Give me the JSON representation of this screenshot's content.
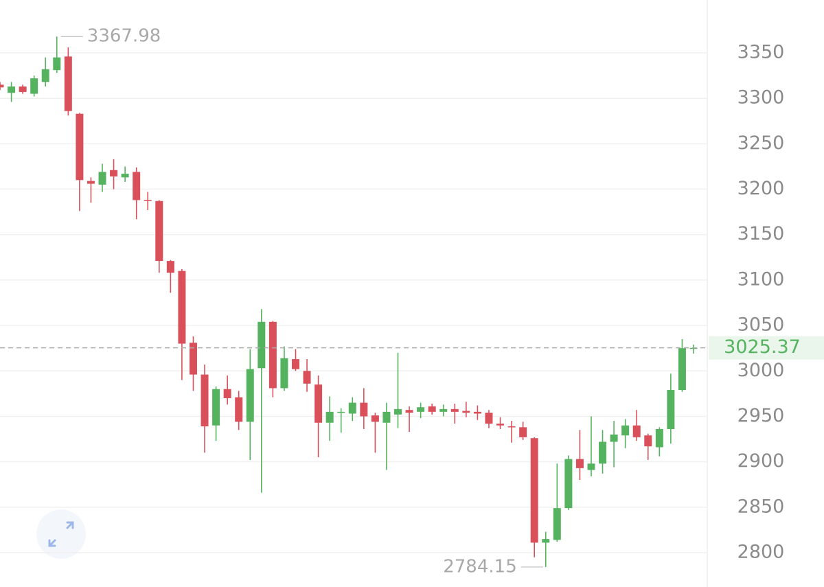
{
  "chart_data": {
    "type": "candlestick",
    "open": [
      3315,
      3306,
      3313,
      3305,
      3318,
      3331,
      3346,
      3283,
      3209,
      3205,
      3221,
      3213,
      3219,
      3188,
      3187,
      3121,
      3110,
      3031,
      2996,
      2940,
      2980,
      2971,
      2944,
      3003,
      3054,
      2981,
      3013,
      3000,
      2985,
      2943,
      2954,
      2953,
      2965,
      2951,
      2943,
      2952,
      2957,
      2955,
      2961,
      2955,
      2958,
      2956,
      2955,
      2954,
      2942,
      2939,
      2938,
      2926,
      2811,
      2814,
      2849,
      2903,
      2891,
      2898,
      2922,
      2929,
      2940,
      2929,
      2916,
      2936,
      2979,
      3025
    ],
    "high": [
      3318,
      3318,
      3315,
      3325,
      3345,
      3367.98,
      3356,
      3284,
      3213,
      3228,
      3233,
      3225,
      3224,
      3197,
      3188,
      3122,
      3112,
      3038,
      3007,
      2983,
      2995,
      2978,
      3024,
      3068,
      3055,
      3027,
      3024,
      3013,
      2995,
      2972,
      2959,
      2971,
      2981,
      2954,
      2965,
      3020,
      2961,
      2965,
      2964,
      2963,
      2964,
      2966,
      2962,
      2957,
      2949,
      2945,
      2944,
      2927,
      2823,
      2898,
      2907,
      2935,
      2950,
      2935,
      2945,
      2947,
      2957,
      2931,
      2938,
      2997,
      3035,
      3029
    ],
    "low": [
      3309,
      3296,
      3305,
      3302,
      3313,
      3328,
      3281,
      3176,
      3185,
      3197,
      3200,
      3208,
      3167,
      3177,
      3108,
      3086,
      2990,
      2978,
      2910,
      2923,
      2963,
      2935,
      2902,
      2866,
      2971,
      2978,
      3000,
      2977,
      2905,
      2923,
      2932,
      2945,
      2936,
      2910,
      2891,
      2937,
      2933,
      2948,
      2952,
      2950,
      2942,
      2949,
      2946,
      2937,
      2936,
      2921,
      2924,
      2795,
      2784.15,
      2812,
      2847,
      2880,
      2884,
      2887,
      2894,
      2915,
      2923,
      2902,
      2906,
      2920,
      2977,
      3019
    ],
    "close": [
      3312,
      3313,
      3307,
      3322,
      3332,
      3345,
      3286,
      3210,
      3206,
      3219,
      3214,
      3217,
      3188,
      3187,
      3121,
      3108,
      3030,
      2996,
      2939,
      2980,
      2970,
      2944,
      3002,
      3054,
      2981,
      3014,
      3002,
      2986,
      2943,
      2955,
      2955,
      2965,
      2950,
      2944,
      2955,
      2958,
      2954,
      2960,
      2955,
      2958,
      2955,
      2954,
      2953,
      2942,
      2940,
      2938,
      2927,
      2811,
      2815,
      2849,
      2903,
      2893,
      2898,
      2922,
      2930,
      2940,
      2927,
      2917,
      2936,
      2979,
      3025,
      3025.37
    ],
    "up_color": "#55b35f",
    "down_color": "#d9505a",
    "ylim": [
      2762.2,
      3408.2
    ],
    "yticks": [
      2800,
      2850,
      2900,
      2950,
      3000,
      3050,
      3100,
      3150,
      3200,
      3250,
      3300,
      3350
    ],
    "grid": true
  }
}
